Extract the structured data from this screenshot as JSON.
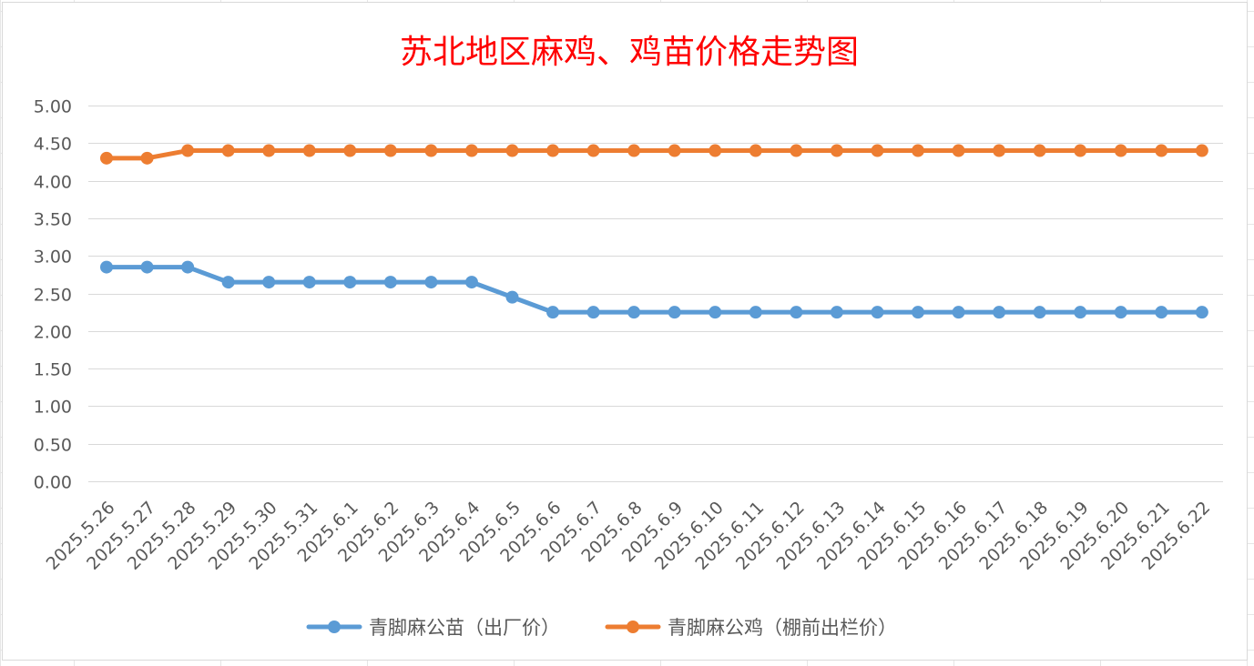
{
  "chart_data": {
    "type": "line",
    "title": "苏北地区麻鸡、鸡苗价格走势图",
    "xlabel": "",
    "ylabel": "",
    "ylim": [
      0,
      5
    ],
    "yticks": [
      "0.00",
      "0.50",
      "1.00",
      "1.50",
      "2.00",
      "2.50",
      "3.00",
      "3.50",
      "4.00",
      "4.50",
      "5.00"
    ],
    "grid": true,
    "legend_position": "bottom",
    "categories": [
      "2025.5.26",
      "2025.5.27",
      "2025.5.28",
      "2025.5.29",
      "2025.5.30",
      "2025.5.31",
      "2025.6.1",
      "2025.6.2",
      "2025.6.3",
      "2025.6.4",
      "2025.6.5",
      "2025.6.6",
      "2025.6.7",
      "2025.6.8",
      "2025.6.9",
      "2025.6.10",
      "2025.6.11",
      "2025.6.12",
      "2025.6.13",
      "2025.6.14",
      "2025.6.15",
      "2025.6.16",
      "2025.6.17",
      "2025.6.18",
      "2025.6.19",
      "2025.6.20",
      "2025.6.21",
      "2025.6.22"
    ],
    "series": [
      {
        "name": "青脚麻公苗（出厂价）",
        "color": "#5b9bd5",
        "values": [
          2.85,
          2.85,
          2.85,
          2.65,
          2.65,
          2.65,
          2.65,
          2.65,
          2.65,
          2.65,
          2.45,
          2.25,
          2.25,
          2.25,
          2.25,
          2.25,
          2.25,
          2.25,
          2.25,
          2.25,
          2.25,
          2.25,
          2.25,
          2.25,
          2.25,
          2.25,
          2.25,
          2.25
        ]
      },
      {
        "name": "青脚麻公鸡（棚前出栏价）",
        "color": "#ed7d31",
        "values": [
          4.3,
          4.3,
          4.4,
          4.4,
          4.4,
          4.4,
          4.4,
          4.4,
          4.4,
          4.4,
          4.4,
          4.4,
          4.4,
          4.4,
          4.4,
          4.4,
          4.4,
          4.4,
          4.4,
          4.4,
          4.4,
          4.4,
          4.4,
          4.4,
          4.4,
          4.4,
          4.4,
          4.4
        ]
      }
    ]
  }
}
